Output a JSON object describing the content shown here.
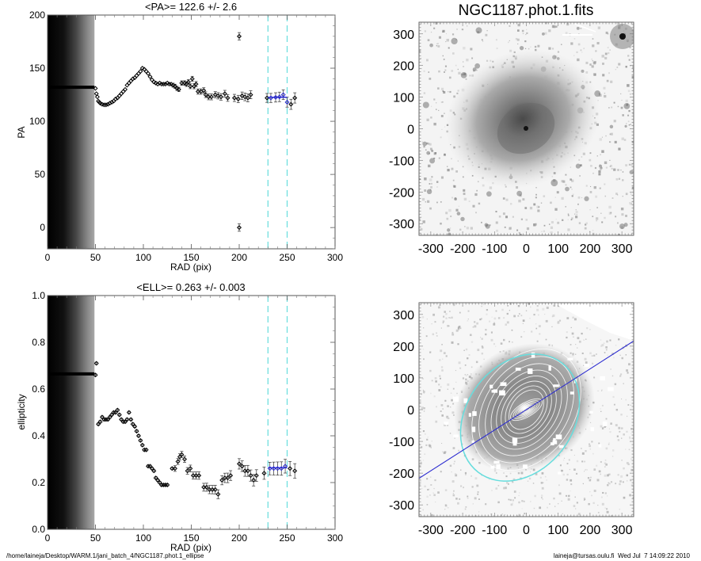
{
  "footer": {
    "left": "/home/laineja/Desktop/WARM.1/jani_batch_4/NGC1187.phot.1_ellipse",
    "right": "laineja@tursas.oulu.fi  Wed Jul  7 14:09:22 2010"
  },
  "colors": {
    "marker": "#000000",
    "fit": "#2a2ad0",
    "range_line": "#66dddd",
    "gradient_dark": "#000000",
    "gradient_light": "#a0a0a0"
  },
  "chart_data": [
    {
      "type": "scatter",
      "id": "pa_plot",
      "title": "<PA>= 122.6 +/-   2.6",
      "xlabel": "RAD (pix)",
      "ylabel": "PA",
      "xlim": [
        0,
        300
      ],
      "ylim": [
        -20,
        200
      ],
      "xticks": [
        "0",
        "50",
        "100",
        "150",
        "200",
        "250",
        "300"
      ],
      "yticks": [
        "0",
        "50",
        "100",
        "150",
        "200"
      ],
      "masked_region_x": [
        0,
        49
      ],
      "range_lines_x": [
        230,
        250
      ],
      "mean_value": 122.6,
      "mean_error": 2.6,
      "inner_constant": {
        "x_range": [
          0,
          49
        ],
        "y": 132
      },
      "points": [
        [
          50,
          131
        ],
        [
          51,
          126
        ],
        [
          52,
          123
        ],
        [
          53,
          119
        ],
        [
          54,
          118
        ],
        [
          55,
          117
        ],
        [
          57,
          116
        ],
        [
          59,
          115.5
        ],
        [
          61,
          115.5
        ],
        [
          63,
          116
        ],
        [
          65,
          117
        ],
        [
          67,
          118
        ],
        [
          69,
          119
        ],
        [
          71,
          121
        ],
        [
          73,
          122
        ],
        [
          75,
          124
        ],
        [
          77,
          126
        ],
        [
          79,
          128
        ],
        [
          81,
          130
        ],
        [
          83,
          134
        ],
        [
          85,
          136
        ],
        [
          87,
          138
        ],
        [
          89,
          140
        ],
        [
          91,
          141
        ],
        [
          93,
          143
        ],
        [
          95,
          145
        ],
        [
          97,
          147
        ],
        [
          99,
          150
        ],
        [
          101,
          149
        ],
        [
          103,
          147
        ],
        [
          105,
          145
        ],
        [
          107,
          142
        ],
        [
          109,
          139
        ],
        [
          111,
          137
        ],
        [
          113,
          136
        ],
        [
          115,
          135
        ],
        [
          117,
          136
        ],
        [
          119,
          135
        ],
        [
          121,
          135
        ],
        [
          123,
          135
        ],
        [
          125,
          136
        ],
        [
          127,
          135
        ],
        [
          129,
          135
        ],
        [
          131,
          134
        ],
        [
          133,
          133
        ],
        [
          135,
          131
        ],
        [
          137,
          130
        ],
        [
          140,
          136
        ],
        [
          143,
          136
        ],
        [
          145,
          135
        ],
        [
          147,
          137
        ],
        [
          149,
          133
        ],
        [
          151,
          140
        ],
        [
          153,
          133
        ],
        [
          155,
          135
        ],
        [
          157,
          128
        ],
        [
          160,
          128
        ],
        [
          163,
          129
        ],
        [
          165,
          125
        ],
        [
          168,
          123
        ],
        [
          171,
          123
        ],
        [
          175,
          125
        ],
        [
          178,
          124
        ],
        [
          181,
          123
        ],
        [
          185,
          126
        ],
        [
          188,
          122
        ],
        [
          200,
          180
        ],
        [
          200,
          0
        ]
      ],
      "points_b": [
        [
          195,
          122
        ],
        [
          199,
          121
        ],
        [
          203,
          124
        ],
        [
          206,
          123
        ],
        [
          209,
          122
        ],
        [
          212,
          125
        ],
        [
          229,
          122
        ]
      ],
      "fit_points": [
        [
          233,
          122
        ],
        [
          238,
          122.5
        ],
        [
          242,
          123
        ],
        [
          246,
          125
        ],
        [
          250,
          118
        ]
      ],
      "outer_points": [
        [
          254,
          116
        ],
        [
          258,
          122
        ]
      ]
    },
    {
      "type": "scatter",
      "id": "ell_plot",
      "title": "<ELL>= 0.263 +/-  0.003",
      "xlabel": "RAD (pix)",
      "ylabel": "ellipticity",
      "xlim": [
        0,
        300
      ],
      "ylim": [
        0.0,
        1.0
      ],
      "xticks": [
        "0",
        "50",
        "100",
        "150",
        "200",
        "250",
        "300"
      ],
      "yticks": [
        "0.0",
        "0.2",
        "0.4",
        "0.6",
        "0.8",
        "1.0"
      ],
      "masked_region_x": [
        0,
        49
      ],
      "range_lines_x": [
        230,
        250
      ],
      "mean_value": 0.263,
      "mean_error": 0.003,
      "inner_constant": {
        "x_range": [
          0,
          49
        ],
        "y": 0.665
      },
      "points": [
        [
          50,
          0.66
        ],
        [
          51,
          0.71
        ],
        [
          53,
          0.45
        ],
        [
          55,
          0.46
        ],
        [
          57,
          0.48
        ],
        [
          59,
          0.47
        ],
        [
          61,
          0.47
        ],
        [
          63,
          0.47
        ],
        [
          65,
          0.48
        ],
        [
          67,
          0.49
        ],
        [
          69,
          0.5
        ],
        [
          71,
          0.5
        ],
        [
          73,
          0.51
        ],
        [
          75,
          0.49
        ],
        [
          77,
          0.47
        ],
        [
          79,
          0.46
        ],
        [
          81,
          0.46
        ],
        [
          83,
          0.47
        ],
        [
          85,
          0.5
        ],
        [
          87,
          0.47
        ],
        [
          89,
          0.45
        ],
        [
          91,
          0.44
        ],
        [
          93,
          0.42
        ],
        [
          95,
          0.4
        ],
        [
          97,
          0.38
        ],
        [
          99,
          0.36
        ],
        [
          101,
          0.34
        ],
        [
          103,
          0.34
        ],
        [
          105,
          0.27
        ],
        [
          107,
          0.27
        ],
        [
          109,
          0.26
        ],
        [
          111,
          0.25
        ],
        [
          113,
          0.22
        ],
        [
          115,
          0.21
        ],
        [
          117,
          0.2
        ],
        [
          119,
          0.19
        ],
        [
          121,
          0.19
        ],
        [
          123,
          0.19
        ],
        [
          125,
          0.19
        ],
        [
          130,
          0.26
        ],
        [
          133,
          0.26
        ],
        [
          136,
          0.29
        ],
        [
          138,
          0.31
        ],
        [
          140,
          0.32
        ],
        [
          143,
          0.3
        ],
        [
          146,
          0.25
        ],
        [
          149,
          0.26
        ],
        [
          152,
          0.23
        ],
        [
          155,
          0.23
        ],
        [
          158,
          0.23
        ],
        [
          163,
          0.18
        ],
        [
          166,
          0.18
        ],
        [
          169,
          0.17
        ],
        [
          172,
          0.17
        ],
        [
          175,
          0.17
        ],
        [
          178,
          0.15
        ],
        [
          182,
          0.21
        ],
        [
          185,
          0.22
        ],
        [
          188,
          0.22
        ],
        [
          191,
          0.23
        ],
        [
          200,
          0.28
        ],
        [
          203,
          0.27
        ],
        [
          206,
          0.25
        ],
        [
          209,
          0.25
        ],
        [
          212,
          0.23
        ],
        [
          215,
          0.21
        ],
        [
          218,
          0.23
        ],
        [
          226,
          0.24
        ]
      ],
      "fit_points": [
        [
          232,
          0.26
        ],
        [
          236,
          0.26
        ],
        [
          240,
          0.26
        ],
        [
          244,
          0.26
        ],
        [
          248,
          0.27
        ]
      ],
      "outer_points": [
        [
          253,
          0.26
        ],
        [
          258,
          0.25
        ]
      ]
    },
    {
      "type": "heatmap",
      "id": "image_top",
      "title": "NGC1187.phot.1.fits",
      "xlim": [
        -337,
        337
      ],
      "ylim": [
        -337,
        337
      ],
      "xticks": [
        "-300",
        "-200",
        "-100",
        "0",
        "100",
        "200",
        "300"
      ],
      "yticks": [
        "-300",
        "-200",
        "-100",
        "0",
        "100",
        "200",
        "300"
      ]
    },
    {
      "type": "heatmap",
      "id": "image_bottom",
      "title": "",
      "xlim": [
        -337,
        337
      ],
      "ylim": [
        -337,
        337
      ],
      "xticks": [
        "-300",
        "-200",
        "-100",
        "0",
        "100",
        "200",
        "300"
      ],
      "yticks": [
        "-300",
        "-200",
        "-100",
        "0",
        "100",
        "200",
        "300"
      ],
      "mean_pa_deg": 122.6,
      "mean_ell": 0.263,
      "outer_ellipse_sma": 240
    }
  ]
}
